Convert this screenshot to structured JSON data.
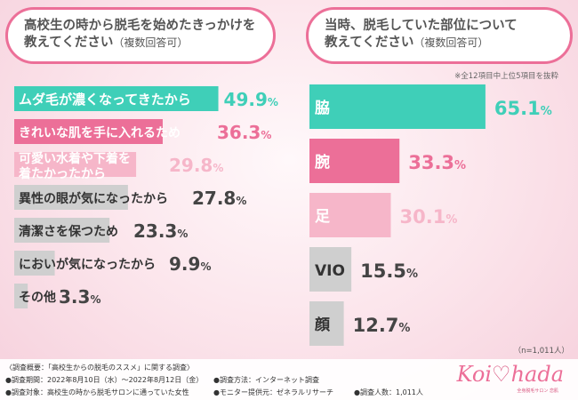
{
  "questions": {
    "left": {
      "line1": "高校生の時から脱毛を始めたきっかけを",
      "line2": "教えてください",
      "sub": "（複数回答可）"
    },
    "right": {
      "line1": "当時、脱毛していた部位について",
      "line2": "教えてください",
      "sub": "（複数回答可）"
    }
  },
  "note": "※全12項目中上位5項目を抜粋",
  "n_label": "（n=1,011人）",
  "chart_data": [
    {
      "type": "bar",
      "orientation": "horizontal",
      "categories": [
        "ムダ毛が濃くなってきたから",
        "きれいな肌を手に入れるため",
        "可愛い水着や下着を着たかったから",
        "異性の眼が気になったから",
        "清潔さを保つため",
        "においが気になったから",
        "その他"
      ],
      "category_lines": [
        [
          "ムダ毛が濃くなってきたから"
        ],
        [
          "きれいな肌を手に入れるため"
        ],
        [
          "可愛い水着や下着を",
          "着たかったから"
        ],
        [
          "異性の眼が気になったから"
        ],
        [
          "清潔さを保つため"
        ],
        [
          "においが気になったから"
        ],
        [
          "その他"
        ]
      ],
      "values": [
        49.9,
        36.3,
        29.8,
        27.8,
        23.3,
        9.9,
        3.3
      ],
      "value_labels": [
        "49.9%",
        "36.3%",
        "29.8%",
        "27.8%",
        "23.3%",
        "9.9%",
        "3.3%"
      ],
      "xlim": [
        0,
        100
      ],
      "colors": [
        "#3fcfb8",
        "#ec6f98",
        "#f6b6c9",
        "#cfcfcf",
        "#cfcfcf",
        "#cfcfcf",
        "#cfcfcf"
      ]
    },
    {
      "type": "bar",
      "orientation": "horizontal",
      "categories": [
        "脇",
        "腕",
        "足",
        "VIO",
        "顔"
      ],
      "values": [
        65.1,
        33.3,
        30.1,
        15.5,
        12.7
      ],
      "value_labels": [
        "65.1%",
        "33.3%",
        "30.1%",
        "15.5%",
        "12.7%"
      ],
      "xlim": [
        0,
        100
      ],
      "colors": [
        "#3fcfb8",
        "#ec6f98",
        "#f6b6c9",
        "#cfcfcf",
        "#cfcfcf"
      ]
    }
  ],
  "footer": {
    "overview": "〈調査概要：「高校生からの脱毛のススメ」に関する調査〉",
    "period": "●調査期間：2022年8月10日（水）〜2022年8月12日（金）",
    "target": "●調査対象：高校生の時から脱毛サロンに通っていた女性",
    "method": "●調査方法：インターネット調査",
    "provider": "●モニター提供元：ゼネラルリサーチ",
    "count": "●調査人数：1,011人"
  },
  "logo": {
    "part1": "Koi",
    "part2": "hada",
    "sub": "全身脱毛サロン 恋肌"
  }
}
